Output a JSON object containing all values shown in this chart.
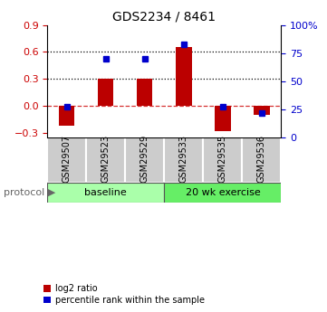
{
  "title": "GDS2234 / 8461",
  "samples": [
    "GSM29507",
    "GSM29523",
    "GSM29529",
    "GSM29533",
    "GSM29535",
    "GSM29536"
  ],
  "log2_ratio": [
    -0.22,
    0.3,
    0.3,
    0.65,
    -0.28,
    -0.1
  ],
  "percentile_rank": [
    27,
    70,
    70,
    83,
    27,
    22
  ],
  "groups": [
    {
      "label": "baseline",
      "start": 0,
      "end": 3,
      "color": "#aaffaa"
    },
    {
      "label": "20 wk exercise",
      "start": 3,
      "end": 6,
      "color": "#66ee66"
    }
  ],
  "bar_color": "#bb0000",
  "dot_color": "#0000cc",
  "ylim_left": [
    -0.35,
    0.9
  ],
  "ylim_right": [
    0,
    100
  ],
  "yticks_left": [
    -0.3,
    0.0,
    0.3,
    0.6,
    0.9
  ],
  "yticks_right": [
    0,
    25,
    50,
    75,
    100
  ],
  "hlines": [
    0.3,
    0.6
  ],
  "background_color": "#ffffff",
  "protocol_label": "protocol",
  "legend_items": [
    {
      "label": "log2 ratio",
      "color": "#bb0000"
    },
    {
      "label": "percentile rank within the sample",
      "color": "#0000cc"
    }
  ]
}
